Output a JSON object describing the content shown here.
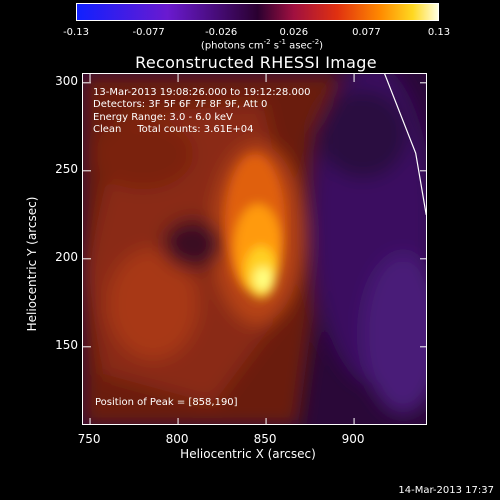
{
  "colorbar": {
    "ticks": [
      "-0.13",
      "-0.077",
      "-0.026",
      "0.026",
      "0.077",
      "0.13"
    ],
    "unit_main": "(photons cm",
    "unit_sup1": "-2",
    "unit_mid": " s",
    "unit_sup2": "-1",
    "unit_mid2": " asec",
    "unit_sup3": "-2",
    "unit_end": ")"
  },
  "chart_data": {
    "type": "heatmap",
    "title": "Reconstructed RHESSI Image",
    "xlabel": "Heliocentric X (arcsec)",
    "ylabel": "Heliocentric Y (arcsec)",
    "xlim": [
      746,
      942
    ],
    "ylim": [
      105,
      305
    ],
    "xticks": [
      "750",
      "800",
      "850",
      "900"
    ],
    "yticks": [
      "150",
      "200",
      "250",
      "300"
    ],
    "xtick_values": [
      750,
      800,
      850,
      900
    ],
    "ytick_values": [
      150,
      200,
      250,
      300
    ],
    "color_range": [
      -0.13,
      0.13
    ],
    "peak": {
      "x": 858,
      "y": 190
    },
    "annotation_lines": [
      "13-Mar-2013 19:08:26.000 to 19:12:28.000",
      "Detectors: 3F 5F 6F 7F 8F 9F, Att 0",
      "Energy Range: 3.0 - 6.0 keV",
      "Clean     Total counts: 3.61E+04"
    ],
    "peak_label": "Position of Peak = [858,190]",
    "limb_points": [
      [
        917,
        306
      ],
      [
        935,
        260
      ],
      [
        941,
        225
      ]
    ]
  },
  "timestamp": "14-Mar-2013 17:37"
}
